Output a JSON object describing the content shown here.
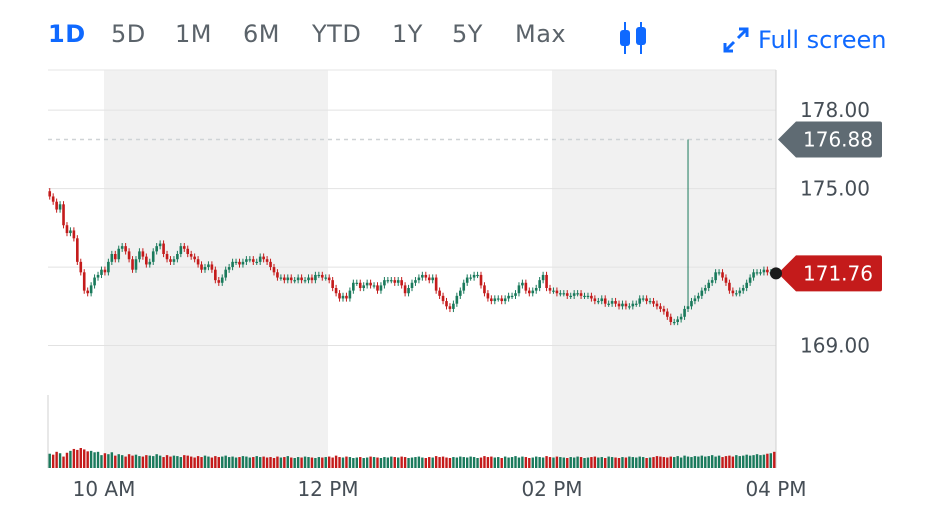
{
  "toolbar": {
    "ranges": [
      "1D",
      "5D",
      "1M",
      "6M",
      "YTD",
      "1Y",
      "5Y",
      "Max"
    ],
    "active_range": "1D",
    "chart_type_icon": "candlestick-icon",
    "fullscreen_icon": "expand-arrows-icon",
    "fullscreen_label": "Full screen",
    "accent_color": "#0f69ff"
  },
  "chart_data": {
    "type": "candlestick",
    "y_ticks": [
      "178.00",
      "175.00",
      "171.76",
      "169.00"
    ],
    "y_tick_values": [
      178.0,
      175.0,
      172.0,
      169.0
    ],
    "x_ticks": [
      "10 AM",
      "12 PM",
      "02 PM",
      "04 PM"
    ],
    "ylim": [
      166.0,
      179.0
    ],
    "high_flag": {
      "value": 176.88,
      "label": "176.88",
      "color": "#5f6b73"
    },
    "last_flag": {
      "value": 171.76,
      "label": "171.76",
      "color": "#c41b1b"
    },
    "up_color": "#1a7a5c",
    "down_color": "#c41b1b",
    "shaded_bands": [
      "10 AM - 12 PM",
      "02 PM - 04 PM"
    ],
    "close": [
      174.7,
      174.5,
      174.2,
      174.4,
      173.6,
      173.3,
      173.4,
      173.1,
      172.2,
      171.8,
      171.1,
      171.0,
      171.3,
      171.6,
      171.7,
      171.9,
      171.8,
      172.2,
      172.5,
      172.3,
      172.7,
      172.8,
      172.6,
      172.3,
      171.9,
      172.3,
      172.6,
      172.4,
      172.1,
      172.2,
      172.6,
      172.8,
      172.9,
      172.5,
      172.3,
      172.2,
      172.3,
      172.5,
      172.8,
      172.7,
      172.5,
      172.4,
      172.3,
      172.1,
      171.9,
      172.0,
      172.1,
      171.9,
      171.5,
      171.4,
      171.6,
      171.9,
      172.0,
      172.2,
      172.2,
      172.1,
      172.2,
      172.3,
      172.3,
      172.2,
      172.2,
      172.4,
      172.3,
      172.2,
      172.0,
      171.8,
      171.6,
      171.6,
      171.5,
      171.6,
      171.5,
      171.5,
      171.6,
      171.5,
      171.5,
      171.6,
      171.5,
      171.7,
      171.7,
      171.6,
      171.6,
      171.5,
      171.2,
      171.0,
      170.8,
      170.9,
      170.8,
      171.1,
      171.4,
      171.4,
      171.2,
      171.3,
      171.4,
      171.3,
      171.3,
      171.1,
      171.3,
      171.5,
      171.5,
      171.5,
      171.4,
      171.5,
      171.3,
      171.0,
      171.2,
      171.4,
      171.5,
      171.6,
      171.7,
      171.6,
      171.5,
      171.6,
      171.1,
      170.9,
      170.7,
      170.5,
      170.4,
      170.6,
      170.9,
      171.1,
      171.4,
      171.6,
      171.6,
      171.7,
      171.7,
      171.3,
      171.0,
      170.8,
      170.7,
      170.8,
      170.8,
      170.7,
      170.8,
      170.9,
      170.9,
      171.0,
      171.3,
      171.4,
      171.1,
      171.0,
      171.1,
      171.2,
      171.5,
      171.7,
      171.2,
      171.1,
      171.1,
      171.0,
      171.0,
      171.0,
      170.9,
      170.9,
      171.0,
      171.0,
      170.9,
      170.9,
      170.9,
      170.8,
      170.7,
      170.7,
      170.8,
      170.6,
      170.6,
      170.7,
      170.6,
      170.5,
      170.6,
      170.5,
      170.5,
      170.6,
      170.6,
      170.8,
      170.8,
      170.7,
      170.7,
      170.6,
      170.5,
      170.4,
      170.3,
      170.1,
      169.9,
      169.9,
      170.0,
      170.1,
      170.4,
      170.5,
      170.7,
      170.8,
      170.9,
      171.1,
      171.2,
      171.4,
      171.5,
      171.8,
      171.8,
      171.6,
      171.4,
      171.1,
      171.0,
      171.0,
      171.1,
      171.2,
      171.4,
      171.6,
      171.8,
      171.8,
      171.8,
      171.9,
      171.8,
      171.8,
      171.76
    ],
    "volume": [
      3.0,
      2.8,
      3.4,
      3.1,
      2.4,
      3.2,
      3.6,
      4.0,
      3.8,
      4.2,
      3.9,
      3.5,
      3.6,
      3.3,
      3.4,
      2.7,
      3.1,
      2.9,
      3.3,
      2.6,
      2.9,
      2.7,
      2.4,
      2.9,
      2.6,
      2.8,
      2.5,
      2.4,
      2.7,
      2.6,
      2.5,
      2.9,
      2.6,
      2.3,
      2.7,
      2.4,
      2.6,
      2.5,
      2.3,
      2.7,
      2.6,
      2.4,
      2.2,
      2.5,
      2.3,
      2.6,
      2.4,
      2.2,
      2.5,
      2.3,
      2.4,
      2.6,
      2.3,
      2.4,
      2.2,
      2.3,
      2.5,
      2.4,
      2.2,
      2.3,
      2.5,
      2.3,
      2.4,
      2.2,
      2.3,
      2.1,
      2.4,
      2.2,
      2.3,
      2.5,
      2.2,
      2.1,
      2.3,
      2.2,
      2.4,
      2.3,
      2.2,
      2.1,
      2.3,
      2.2,
      2.3,
      2.4,
      2.2,
      2.6,
      2.3,
      2.2,
      2.4,
      2.3,
      2.1,
      2.2,
      2.3,
      2.1,
      2.2,
      2.4,
      2.3,
      2.2,
      2.1,
      2.3,
      2.2,
      2.4,
      2.3,
      2.2,
      2.4,
      2.3,
      2.1,
      2.2,
      2.3,
      2.4,
      2.2,
      2.1,
      2.3,
      2.2,
      2.5,
      2.3,
      2.4,
      2.2,
      2.1,
      2.3,
      2.2,
      2.4,
      2.3,
      2.2,
      2.4,
      2.3,
      2.1,
      2.2,
      2.5,
      2.3,
      2.4,
      2.2,
      2.3,
      2.1,
      2.4,
      2.2,
      2.3,
      2.5,
      2.2,
      2.4,
      2.3,
      2.1,
      2.2,
      2.4,
      2.3,
      2.2,
      2.5,
      2.3,
      2.2,
      2.4,
      2.3,
      2.2,
      2.1,
      2.3,
      2.2,
      2.4,
      2.3,
      2.1,
      2.2,
      2.3,
      2.4,
      2.2,
      2.3,
      2.1,
      2.4,
      2.3,
      2.2,
      2.1,
      2.3,
      2.2,
      2.4,
      2.3,
      2.2,
      2.4,
      2.3,
      2.1,
      2.2,
      2.3,
      2.5,
      2.4,
      2.3,
      2.2,
      2.4,
      2.3,
      2.5,
      2.2,
      2.6,
      2.4,
      2.3,
      2.5,
      2.4,
      2.6,
      2.4,
      2.5,
      2.7,
      2.4,
      2.6,
      2.3,
      2.5,
      2.6,
      2.4,
      2.7,
      2.5,
      2.6,
      2.8,
      2.6,
      2.7,
      2.9,
      2.7,
      2.8,
      3.0,
      3.1,
      3.4
    ],
    "spike_index": 185,
    "spike_high": 176.88
  }
}
